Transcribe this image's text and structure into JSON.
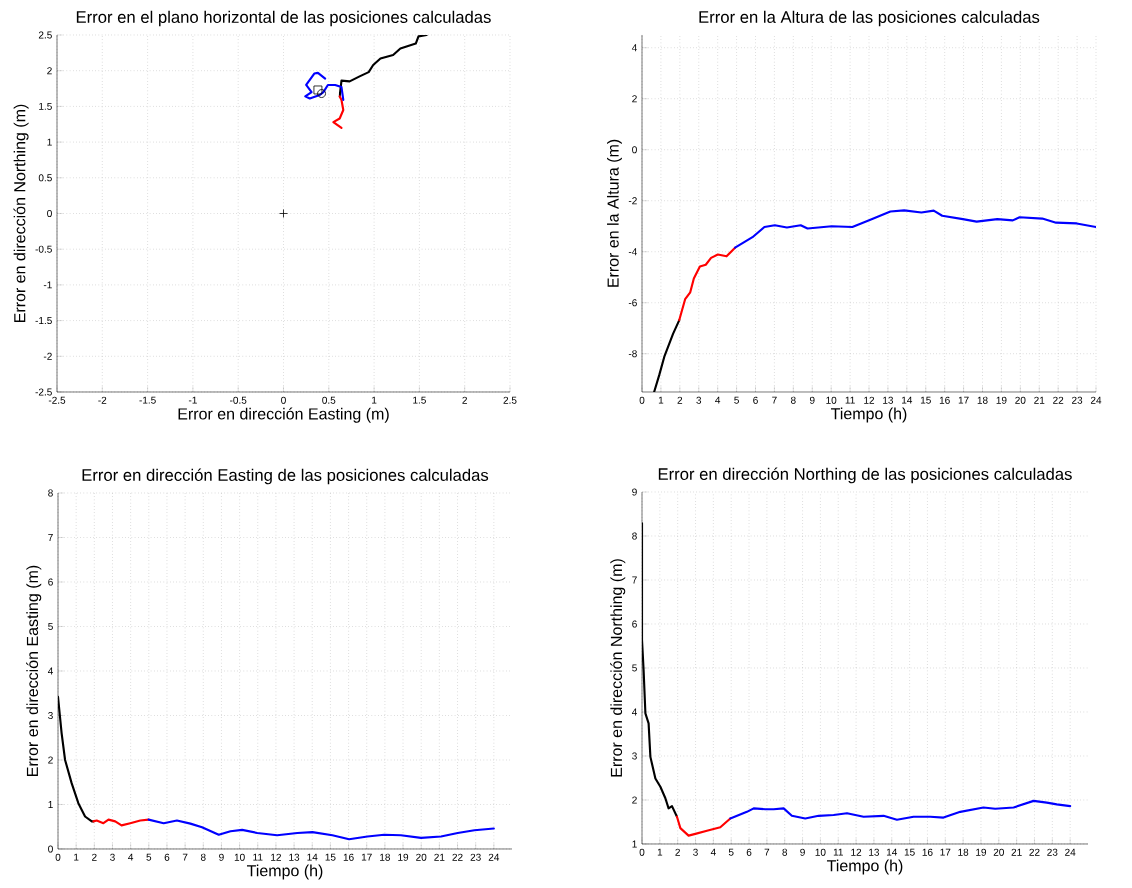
{
  "chart_data": [
    {
      "type": "line",
      "title": "Error en el plano horizontal de las posiciones calculadas",
      "xlabel": "Error en dirección Easting (m)",
      "ylabel": "Error en dirección Northing (m)",
      "xlim": [
        -2.5,
        2.5
      ],
      "ylim": [
        -2.5,
        2.5
      ],
      "xticks": [
        -2.5,
        -2,
        -1.5,
        -1,
        -0.5,
        0,
        0.5,
        1,
        1.5,
        2,
        2.5
      ],
      "yticks": [
        -2.5,
        -2,
        -1.5,
        -1,
        -0.5,
        0,
        0.5,
        1,
        1.5,
        2,
        2.5
      ],
      "grid": true,
      "series": [
        {
          "color": "#000000",
          "x": [
            1.58,
            1.49,
            1.46,
            1.29,
            1.21,
            1.07,
            0.99,
            0.94,
            0.84,
            0.73,
            0.64,
            0.62
          ],
          "values": [
            2.5,
            2.48,
            2.38,
            2.31,
            2.22,
            2.17,
            2.08,
            1.98,
            1.92,
            1.85,
            1.86,
            1.64
          ]
        },
        {
          "color": "#ff0000",
          "x": [
            0.62,
            0.64,
            0.66,
            0.62,
            0.55,
            0.64
          ],
          "values": [
            1.64,
            1.59,
            1.45,
            1.33,
            1.28,
            1.2
          ]
        },
        {
          "color": "#0000ff",
          "x": [
            0.66,
            0.64,
            0.57,
            0.49,
            0.44,
            0.4,
            0.29,
            0.24,
            0.31,
            0.25,
            0.34,
            0.38,
            0.46
          ],
          "values": [
            1.59,
            1.77,
            1.8,
            1.8,
            1.7,
            1.66,
            1.61,
            1.64,
            1.7,
            1.8,
            1.96,
            1.97,
            1.89
          ]
        },
        {
          "type": "scatter",
          "marker": "cross",
          "color": "#000000",
          "x": [
            0
          ],
          "values": [
            0
          ]
        },
        {
          "type": "scatter",
          "marker": "square",
          "color": "#000000",
          "x": [
            0.38
          ],
          "values": [
            1.73
          ]
        },
        {
          "type": "scatter",
          "marker": "circle",
          "color": "#000000",
          "x": [
            0.42
          ],
          "values": [
            1.68
          ]
        }
      ]
    },
    {
      "type": "line",
      "title": "Error en la Altura de las posiciones calculadas",
      "xlabel": "Tiempo (h)",
      "ylabel": "Error en la Altura (m)",
      "xlim": [
        0,
        24
      ],
      "ylim": [
        -9.5,
        4.5
      ],
      "xticks": [
        0,
        1,
        2,
        3,
        4,
        5,
        6,
        7,
        8,
        9,
        10,
        11,
        12,
        13,
        14,
        15,
        16,
        17,
        18,
        19,
        20,
        21,
        22,
        23,
        24
      ],
      "yticks": [
        -8,
        -6,
        -4,
        -2,
        0,
        2,
        4
      ],
      "grid": true,
      "series": [
        {
          "color": "#000000",
          "x": [
            0.64,
            0.91,
            1.19,
            1.64,
            1.97
          ],
          "values": [
            -9.5,
            -8.84,
            -8.09,
            -7.22,
            -6.68
          ]
        },
        {
          "color": "#ff0000",
          "x": [
            1.97,
            2.28,
            2.55,
            2.74,
            3.06,
            3.37,
            3.65,
            4.01,
            4.47,
            4.92
          ],
          "values": [
            -6.68,
            -5.86,
            -5.59,
            -5.05,
            -4.58,
            -4.51,
            -4.24,
            -4.11,
            -4.18,
            -3.84
          ]
        },
        {
          "color": "#0000ff",
          "x": [
            4.92,
            5.84,
            6.47,
            7.02,
            7.66,
            8.39,
            8.75,
            10.03,
            11.12,
            12.04,
            13.13,
            13.86,
            14.77,
            15.42,
            15.87,
            16.96,
            17.69,
            18.78,
            19.6,
            19.96,
            21.16,
            21.89,
            22.98,
            24
          ],
          "values": [
            -3.84,
            -3.43,
            -3.03,
            -2.96,
            -3.05,
            -2.96,
            -3.09,
            -3.0,
            -3.03,
            -2.76,
            -2.42,
            -2.38,
            -2.46,
            -2.39,
            -2.59,
            -2.72,
            -2.82,
            -2.72,
            -2.77,
            -2.65,
            -2.7,
            -2.86,
            -2.89,
            -3.03
          ]
        }
      ]
    },
    {
      "type": "line",
      "title": "Error en dirección Easting de las posiciones calculadas",
      "xlabel": "Tiempo (h)",
      "ylabel": "Error en dirección Easting (m)",
      "xlim": [
        0,
        25
      ],
      "ylim": [
        0,
        8
      ],
      "xticks": [
        0,
        1,
        2,
        3,
        4,
        5,
        6,
        7,
        8,
        9,
        10,
        11,
        12,
        13,
        14,
        15,
        16,
        17,
        18,
        19,
        20,
        21,
        22,
        23,
        24
      ],
      "yticks": [
        0,
        1,
        2,
        3,
        4,
        5,
        6,
        7,
        8
      ],
      "grid": true,
      "series": [
        {
          "color": "#000000",
          "x": [
            0,
            0.2,
            0.39,
            0.75,
            1.12,
            1.49,
            1.86,
            1.95
          ],
          "values": [
            3.42,
            2.6,
            2.0,
            1.48,
            1.03,
            0.73,
            0.62,
            0.62
          ]
        },
        {
          "color": "#ff0000",
          "x": [
            1.95,
            2.13,
            2.5,
            2.78,
            3.15,
            3.5,
            3.98,
            4.53,
            4.99
          ],
          "values": [
            0.62,
            0.64,
            0.58,
            0.66,
            0.62,
            0.53,
            0.58,
            0.64,
            0.66
          ]
        },
        {
          "color": "#0000ff",
          "x": [
            4.99,
            5.82,
            6.55,
            7.29,
            7.93,
            8.85,
            9.5,
            10.14,
            10.97,
            12.07,
            13.18,
            14.01,
            15.11,
            16.03,
            17.04,
            17.96,
            18.88,
            19.99,
            21.09,
            22.01,
            22.93,
            24
          ],
          "values": [
            0.66,
            0.58,
            0.64,
            0.57,
            0.49,
            0.32,
            0.4,
            0.43,
            0.36,
            0.31,
            0.36,
            0.38,
            0.31,
            0.22,
            0.28,
            0.32,
            0.31,
            0.25,
            0.28,
            0.36,
            0.42,
            0.46
          ]
        }
      ]
    },
    {
      "type": "line",
      "title": "Error en dirección Northing de las posiciones calculadas",
      "xlabel": "Tiempo (h)",
      "ylabel": "Error en dirección Northing (m)",
      "xlim": [
        0,
        25
      ],
      "ylim": [
        1,
        9
      ],
      "xticks": [
        0,
        1,
        2,
        3,
        4,
        5,
        6,
        7,
        8,
        9,
        10,
        11,
        12,
        13,
        14,
        15,
        16,
        17,
        18,
        19,
        20,
        21,
        22,
        23,
        24
      ],
      "yticks": [
        1,
        2,
        3,
        4,
        5,
        6,
        7,
        8,
        9
      ],
      "grid": true,
      "series": [
        {
          "color": "#000000",
          "x": [
            0,
            0,
            0.09,
            0.19,
            0.37,
            0.47,
            0.75,
            1.03,
            1.31,
            1.49,
            1.68,
            1.96
          ],
          "values": [
            8.29,
            5.64,
            4.95,
            3.97,
            3.74,
            2.98,
            2.49,
            2.3,
            2.04,
            1.81,
            1.86,
            1.62
          ]
        },
        {
          "color": "#ff0000",
          "x": [
            1.96,
            2.15,
            2.61,
            2.99,
            3.64,
            4.39,
            4.95
          ],
          "values": [
            1.62,
            1.36,
            1.19,
            1.23,
            1.3,
            1.38,
            1.58
          ]
        },
        {
          "color": "#0000ff",
          "x": [
            4.95,
            5.88,
            6.26,
            6.92,
            7.38,
            7.94,
            8.4,
            9.15,
            9.9,
            10.74,
            11.49,
            12.42,
            13.54,
            14.29,
            15.22,
            16.16,
            16.9,
            17.84,
            19.14,
            19.8,
            20.83,
            21.95,
            22.69,
            23.25,
            24
          ],
          "values": [
            1.58,
            1.73,
            1.81,
            1.79,
            1.79,
            1.81,
            1.64,
            1.58,
            1.64,
            1.66,
            1.7,
            1.62,
            1.64,
            1.55,
            1.62,
            1.62,
            1.6,
            1.73,
            1.83,
            1.8,
            1.83,
            1.98,
            1.94,
            1.9,
            1.86
          ]
        }
      ]
    }
  ]
}
